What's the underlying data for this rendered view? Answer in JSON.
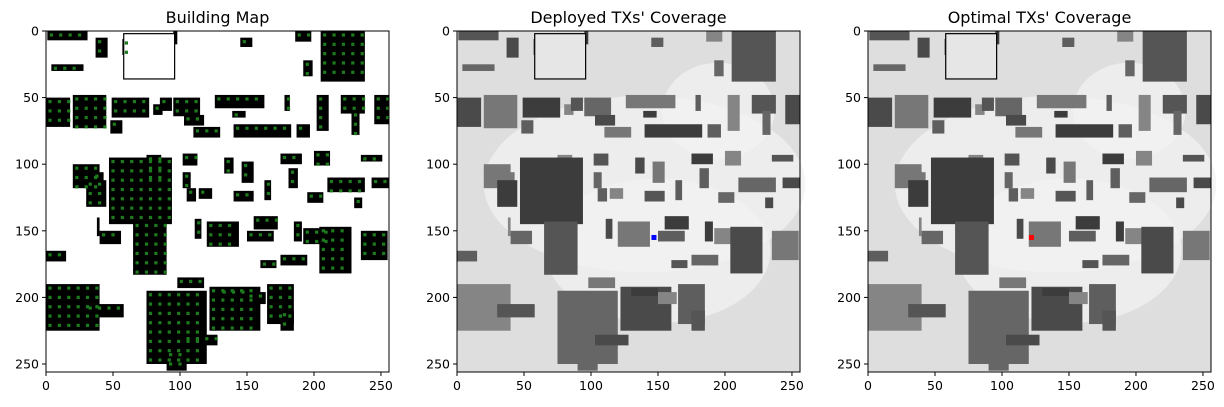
{
  "chart_data": [
    {
      "type": "heatmap",
      "title": "Building Map",
      "xlabel": "",
      "ylabel": "",
      "xlim": [
        0,
        255
      ],
      "ylim": [
        255,
        0
      ],
      "xticks": [
        0,
        50,
        100,
        150,
        200,
        250
      ],
      "yticks": [
        0,
        50,
        100,
        150,
        200,
        250
      ],
      "grid": false,
      "colors": {
        "building": "#000000",
        "receiver": "#1e7a1e",
        "background": "#ffffff"
      }
    },
    {
      "type": "heatmap",
      "title": "Deployed TXs' Coverage",
      "xlabel": "",
      "ylabel": "",
      "xlim": [
        0,
        255
      ],
      "ylim": [
        255,
        0
      ],
      "xticks": [
        0,
        50,
        100,
        150,
        200,
        250
      ],
      "yticks": [
        0,
        50,
        100,
        150,
        200,
        250
      ],
      "grid": false,
      "colormap": "gray",
      "transmitter": {
        "x": 147,
        "y": 155,
        "color": "#0000ff"
      }
    },
    {
      "type": "heatmap",
      "title": "Optimal TXs' Coverage",
      "xlabel": "",
      "ylabel": "",
      "xlim": [
        0,
        255
      ],
      "ylim": [
        255,
        0
      ],
      "xticks": [
        0,
        50,
        100,
        150,
        200,
        250
      ],
      "yticks": [
        0,
        50,
        100,
        150,
        200,
        250
      ],
      "grid": false,
      "colormap": "gray",
      "transmitter": {
        "x": 122,
        "y": 155,
        "color": "#ff0000"
      }
    }
  ]
}
